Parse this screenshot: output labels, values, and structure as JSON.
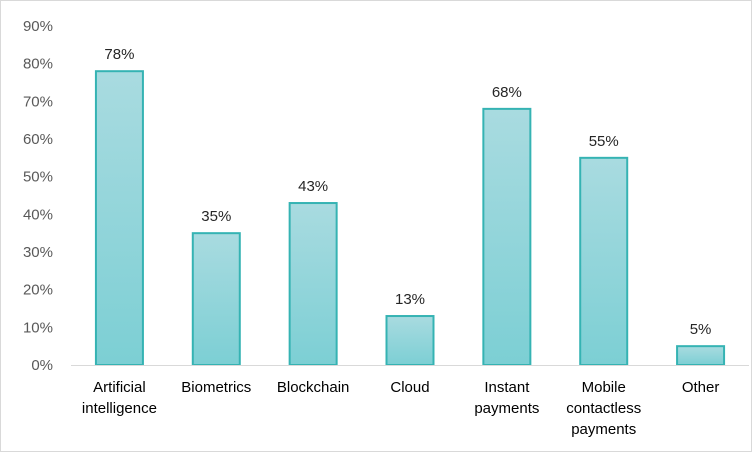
{
  "chart_data": {
    "type": "bar",
    "categories": [
      [
        "Artificial",
        "intelligence"
      ],
      [
        "Biometrics"
      ],
      [
        "Blockchain"
      ],
      [
        "Cloud"
      ],
      [
        "Instant",
        "payments"
      ],
      [
        "Mobile",
        "contactless",
        "payments"
      ],
      [
        "Other"
      ]
    ],
    "values": [
      78,
      35,
      43,
      13,
      68,
      55,
      5
    ],
    "data_labels": [
      "78%",
      "35%",
      "43%",
      "13%",
      "68%",
      "55%",
      "5%"
    ],
    "y_ticks": [
      "0%",
      "10%",
      "20%",
      "30%",
      "40%",
      "50%",
      "60%",
      "70%",
      "80%",
      "90%"
    ],
    "ylim": [
      0,
      90
    ],
    "title": "",
    "xlabel": "",
    "ylabel": "",
    "grid": false,
    "legend": "none",
    "colors": {
      "bar_top": "#a9dbe0",
      "bar_bottom": "#7ccfd4",
      "bar_stroke": "#35b3b3",
      "axis": "#d9d9d9"
    }
  }
}
